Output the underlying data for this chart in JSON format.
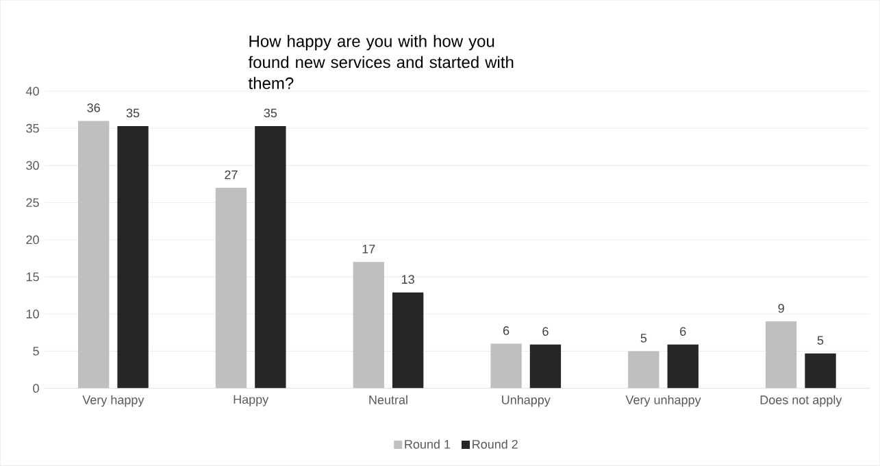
{
  "chart_data": {
    "type": "bar",
    "title": "How happy are you with how you found new services and started with them?",
    "categories": [
      "Very happy",
      "Happy",
      "Neutral",
      "Unhappy",
      "Very unhappy",
      "Does not apply"
    ],
    "series": [
      {
        "name": "Round 1",
        "color": "#bfbfbf",
        "values": [
          36,
          27,
          17,
          6,
          5,
          9
        ],
        "value_labels": [
          "36",
          "27",
          "17",
          "6",
          "5",
          "9"
        ]
      },
      {
        "name": "Round 2",
        "color": "#262626",
        "values": [
          35.3,
          35.3,
          12.9,
          5.9,
          5.9,
          4.7
        ],
        "value_labels": [
          "35",
          "35",
          "13",
          "6",
          "6",
          "5"
        ]
      }
    ],
    "ylim": [
      0,
      40
    ],
    "yticks": [
      0,
      5,
      10,
      15,
      20,
      25,
      30,
      35,
      40
    ],
    "grid": "y",
    "legend": "bottom"
  }
}
